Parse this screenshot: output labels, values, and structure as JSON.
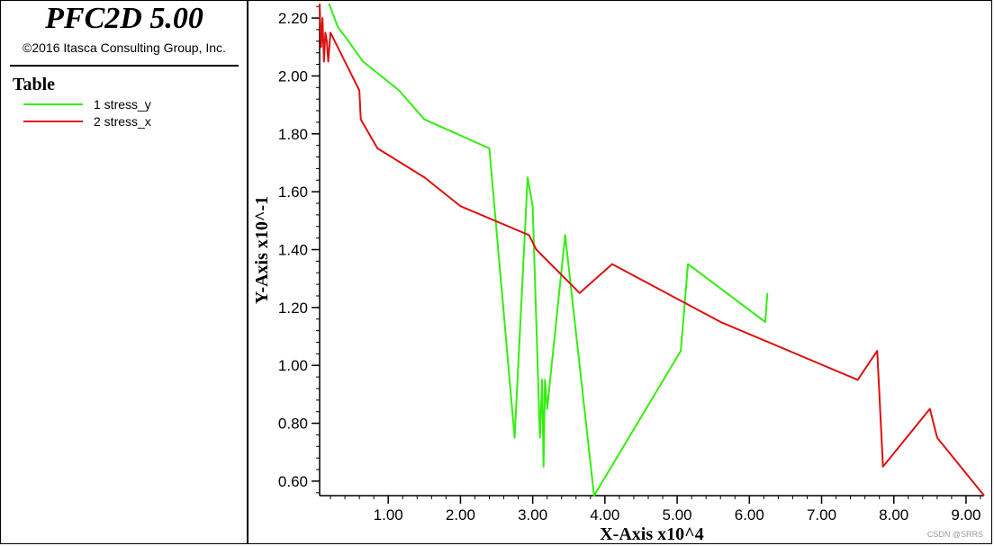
{
  "app": {
    "title": "PFC2D 5.00",
    "copyright": "©2016 Itasca Consulting Group, Inc."
  },
  "legend": {
    "heading": "Table",
    "items": [
      {
        "label": "1 stress_y",
        "color": "#33ee11"
      },
      {
        "label": "2 stress_x",
        "color": "#dd1111"
      }
    ]
  },
  "watermark": "CSDN @SRRS",
  "chart_data": {
    "type": "line",
    "xlabel": "X-Axis x10^4",
    "ylabel": "Y-Axis x10^-1",
    "xlim": [
      0.05,
      9.25
    ],
    "ylim": [
      0.55,
      2.25
    ],
    "xticks": [
      "1.00",
      "2.00",
      "3.00",
      "4.00",
      "5.00",
      "6.00",
      "7.00",
      "8.00",
      "9.00"
    ],
    "yticks": [
      "0.60",
      "0.80",
      "1.00",
      "1.20",
      "1.40",
      "1.60",
      "1.80",
      "2.00",
      "2.20"
    ],
    "series": [
      {
        "name": "1 stress_y",
        "color": "#33ee11",
        "x": [
          0.18,
          0.3,
          0.45,
          0.65,
          1.15,
          1.5,
          2.4,
          2.75,
          2.93,
          3.0,
          3.1,
          3.13,
          3.15,
          3.17,
          3.2,
          3.45,
          3.85,
          5.05,
          5.15,
          6.22,
          6.25
        ],
        "y": [
          2.25,
          2.17,
          2.12,
          2.05,
          1.95,
          1.85,
          1.75,
          0.75,
          1.65,
          1.55,
          0.75,
          0.95,
          0.65,
          0.95,
          0.85,
          1.45,
          0.55,
          1.05,
          1.35,
          1.15,
          1.25
        ]
      },
      {
        "name": "2 stress_x",
        "color": "#dd1111",
        "x": [
          0.05,
          0.07,
          0.09,
          0.11,
          0.13,
          0.15,
          0.17,
          0.2,
          0.4,
          0.6,
          0.62,
          0.85,
          1.5,
          2.0,
          2.95,
          3.05,
          3.65,
          4.1,
          5.6,
          7.5,
          7.77,
          7.85,
          8.5,
          8.6,
          9.25
        ],
        "y": [
          2.25,
          2.1,
          2.2,
          2.05,
          2.15,
          2.12,
          2.05,
          2.15,
          2.05,
          1.95,
          1.85,
          1.75,
          1.65,
          1.55,
          1.45,
          1.4,
          1.25,
          1.35,
          1.15,
          0.95,
          1.05,
          0.65,
          0.85,
          0.75,
          0.55
        ]
      }
    ]
  }
}
